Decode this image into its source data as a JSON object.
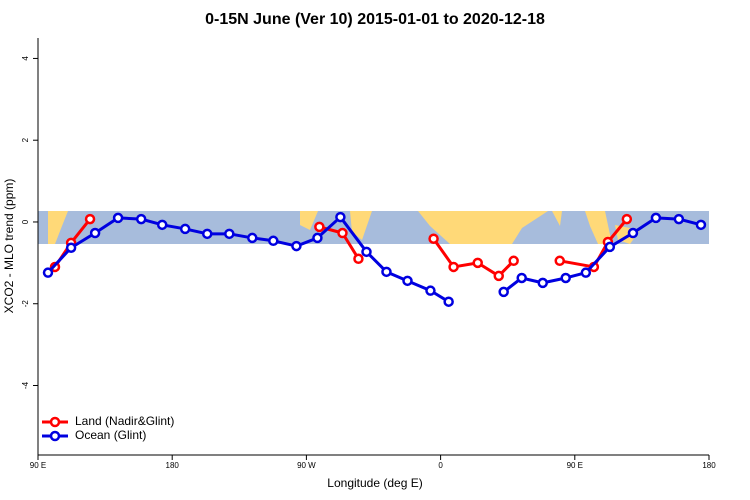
{
  "chart_data": {
    "type": "line",
    "title": "0-15N June (Ver 10)   2015-01-01 to 2020-12-18",
    "x_label": "Longitude (deg E)",
    "y_label": "XCO2 - MLO trend (ppm)",
    "xlim": [
      90,
      540
    ],
    "ylim": [
      -5.7,
      4.5
    ],
    "xticks": [
      {
        "value": 90,
        "label": "90 E"
      },
      180,
      {
        "value": 270,
        "label": "90 W"
      },
      {
        "value": 360,
        "label": "0"
      },
      {
        "value": 450,
        "label": "90 E"
      },
      {
        "value": 540,
        "label": "180"
      }
    ],
    "yticks": [
      -4,
      -2,
      0,
      2,
      4
    ],
    "legend": "bottom left",
    "series": [
      {
        "name": "Land (Nadir&Glint)",
        "color": "#ff0000",
        "x": [
          101.4,
          112.2,
          124.9,
          null,
          278.7,
          294.2,
          304.9,
          null,
          355.3,
          368.7,
          384.9,
          399.0,
          409.0,
          null,
          439.9,
          462.8,
          472.2,
          484.9
        ],
        "values": [
          -1.1,
          -0.51,
          0.07,
          null,
          -0.12,
          -0.27,
          -0.9,
          null,
          -0.41,
          -1.1,
          -1.0,
          -1.32,
          -0.95,
          null,
          -0.95,
          -1.1,
          -0.49,
          0.07
        ]
      },
      {
        "name": "Ocean (Glint)",
        "color": "#0000e0",
        "x": [
          96.7,
          112.2,
          128.3,
          143.7,
          159.2,
          173.3,
          188.7,
          203.5,
          218.3,
          233.7,
          247.8,
          263.3,
          277.4,
          292.8,
          310.3,
          323.7,
          337.8,
          353.2,
          365.4,
          null,
          402.3,
          414.4,
          428.5,
          443.9,
          457.4,
          473.5,
          489.0,
          504.4,
          519.8,
          534.6
        ],
        "values": [
          -1.24,
          -0.63,
          -0.27,
          0.1,
          0.07,
          -0.07,
          -0.17,
          -0.29,
          -0.29,
          -0.39,
          -0.46,
          -0.59,
          -0.39,
          0.12,
          -0.73,
          -1.22,
          -1.44,
          -1.68,
          -1.95,
          null,
          -1.71,
          -1.37,
          -1.49,
          -1.37,
          -1.24,
          -0.61,
          -0.27,
          0.1,
          0.07,
          -0.07
        ]
      }
    ]
  }
}
